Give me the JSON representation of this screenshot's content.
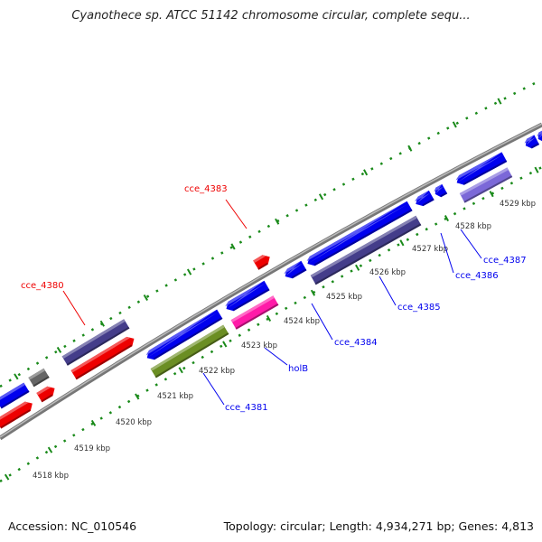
{
  "title": "Cyanothece sp. ATCC 51142 chromosome circular, complete sequ...",
  "scale_labels": [
    "4518 kbp",
    "4519 kbp",
    "4520 kbp",
    "4521 kbp",
    "4522 kbp",
    "4523 kbp",
    "4524 kbp",
    "4525 kbp",
    "4526 kbp",
    "4527 kbp",
    "4528 kbp",
    "4529 kbp"
  ],
  "genes": {
    "cce_4380": "cce_4380",
    "cce_4383": "cce_4383",
    "cce_4381": "cce_4381",
    "holB": "holB",
    "cce_4384": "cce_4384",
    "cce_4385": "cce_4385",
    "cce_4386": "cce_4386",
    "cce_4387": "cce_4387"
  },
  "colors": {
    "forward_gene": "#ff0000",
    "reverse_gene": "#0000ee",
    "scale": "#1a8a1a",
    "backbone": "#8c8c8c"
  },
  "footer": {
    "accession": "Accession: NC_010546",
    "summary": "Topology: circular; Length: 4,934,271 bp; Genes: 4,813"
  }
}
